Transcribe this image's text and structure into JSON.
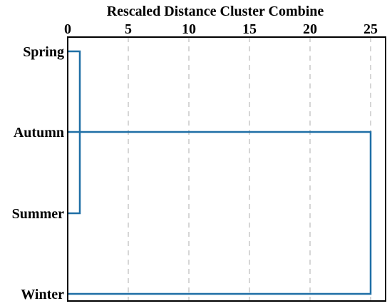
{
  "chart_data": {
    "type": "dendrogram",
    "title": "Rescaled Distance Cluster Combine",
    "x_ticks": [
      0,
      5,
      10,
      15,
      20,
      25
    ],
    "xlim": [
      0,
      26
    ],
    "grid": "vertical dashed",
    "leaves": [
      "Spring",
      "Autumn",
      "Summer",
      "Winter"
    ],
    "merges": [
      {
        "a": "Spring",
        "b": "Summer",
        "distance": 1
      },
      {
        "a": "Spring+Summer",
        "b": "Autumn",
        "distance": 1
      },
      {
        "a": "Spring+Summer+Autumn",
        "b": "Winter",
        "distance": 25
      }
    ],
    "line_color": "#1f6fa6"
  }
}
